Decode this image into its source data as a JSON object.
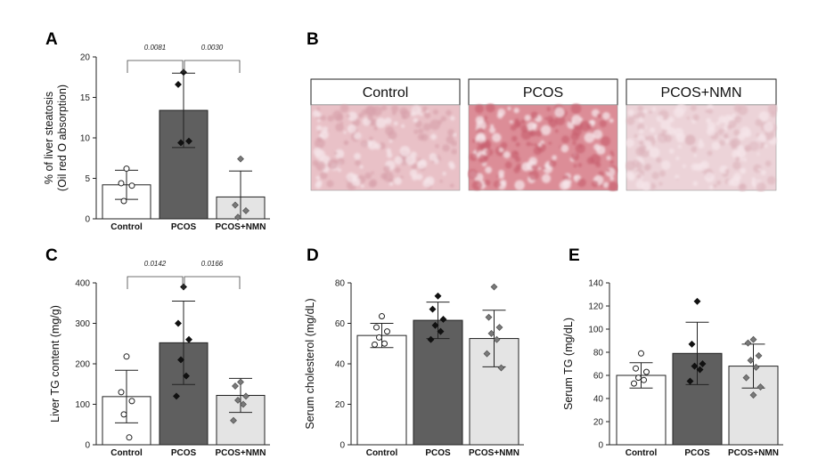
{
  "panel_letters": [
    "A",
    "B",
    "C",
    "D",
    "E"
  ],
  "histology": {
    "titles": [
      "Control",
      "PCOS",
      "PCOS+NMN"
    ],
    "tint_colors": [
      "#e9c1c7",
      "#dc8d97",
      "#ecd3d8"
    ],
    "speckle_colors": [
      "#d7a1ab",
      "#c8606f",
      "#ddb5bd"
    ]
  },
  "chart_data": [
    {
      "type": "bar",
      "categories": [
        "Control",
        "PCOS",
        "PCOS+NMN"
      ],
      "ylabel": "% of liver steatosis\n(Oil red O absorption)",
      "ylim": [
        0,
        20
      ],
      "yticks": [
        0,
        5,
        10,
        15,
        20
      ],
      "values": [
        4.2,
        13.4,
        2.7
      ],
      "errors": [
        1.8,
        4.6,
        3.2
      ],
      "points": [
        [
          6.2,
          4.4,
          4.1,
          2.2
        ],
        [
          18.1,
          16.6,
          9.6,
          9.4
        ],
        [
          7.4,
          1.7,
          1.0,
          0.2
        ]
      ],
      "bar_colors": [
        "#ffffff",
        "#5f5f5f",
        "#e4e4e4"
      ],
      "marker_colors": [
        "#ffffff",
        "#111111",
        "#7a7a7a"
      ],
      "marker_shapes": [
        "circle",
        "diamond",
        "diamond"
      ],
      "significance": [
        {
          "from": 0,
          "to": 1,
          "label": "0.0081"
        },
        {
          "from": 1,
          "to": 2,
          "label": "0.0030"
        }
      ]
    },
    {
      "type": "bar",
      "categories": [
        "Control",
        "PCOS",
        "PCOS+NMN"
      ],
      "ylabel": "Liver TG content (mg/g)",
      "ylim": [
        0,
        400
      ],
      "yticks": [
        0,
        100,
        200,
        300,
        400
      ],
      "values": [
        119,
        252,
        122
      ],
      "errors": [
        65,
        103,
        42
      ],
      "points": [
        [
          218,
          130,
          108,
          75,
          18
        ],
        [
          390,
          300,
          260,
          210,
          170,
          120
        ],
        [
          155,
          145,
          120,
          110,
          100,
          60
        ]
      ],
      "bar_colors": [
        "#ffffff",
        "#5f5f5f",
        "#e4e4e4"
      ],
      "marker_colors": [
        "#ffffff",
        "#111111",
        "#7a7a7a"
      ],
      "marker_shapes": [
        "circle",
        "diamond",
        "diamond"
      ],
      "significance": [
        {
          "from": 0,
          "to": 1,
          "label": "0.0142"
        },
        {
          "from": 1,
          "to": 2,
          "label": "0.0166"
        }
      ]
    },
    {
      "type": "bar",
      "categories": [
        "Control",
        "PCOS",
        "PCOS+NMN"
      ],
      "ylabel": "Serum cholesterol (mg/dL)",
      "ylim": [
        0,
        80
      ],
      "yticks": [
        0,
        20,
        40,
        60,
        80
      ],
      "values": [
        54,
        61.5,
        52.5
      ],
      "errors": [
        6,
        9,
        14
      ],
      "points": [
        [
          63.5,
          58,
          56,
          53,
          50,
          49.5
        ],
        [
          73.5,
          67,
          62,
          59,
          56,
          52
        ],
        [
          78,
          63,
          58,
          55,
          52,
          45,
          38
        ]
      ],
      "bar_colors": [
        "#ffffff",
        "#5f5f5f",
        "#e4e4e4"
      ],
      "marker_colors": [
        "#ffffff",
        "#111111",
        "#7a7a7a"
      ],
      "marker_shapes": [
        "circle",
        "diamond",
        "diamond"
      ],
      "significance": []
    },
    {
      "type": "bar",
      "categories": [
        "Control",
        "PCOS",
        "PCOS+NMN"
      ],
      "ylabel": "Serum TG (mg/dL)",
      "ylim": [
        0,
        140
      ],
      "yticks": [
        0,
        20,
        40,
        60,
        80,
        100,
        120,
        140
      ],
      "values": [
        60,
        79,
        68
      ],
      "errors": [
        11,
        27,
        19
      ],
      "points": [
        [
          79,
          66,
          63,
          58,
          56,
          53
        ],
        [
          124,
          87,
          70,
          68,
          65,
          55
        ],
        [
          91,
          88,
          77,
          73,
          67,
          58,
          50,
          43
        ]
      ],
      "bar_colors": [
        "#ffffff",
        "#5f5f5f",
        "#e4e4e4"
      ],
      "marker_colors": [
        "#ffffff",
        "#111111",
        "#7a7a7a"
      ],
      "marker_shapes": [
        "circle",
        "diamond",
        "diamond"
      ],
      "significance": []
    }
  ]
}
